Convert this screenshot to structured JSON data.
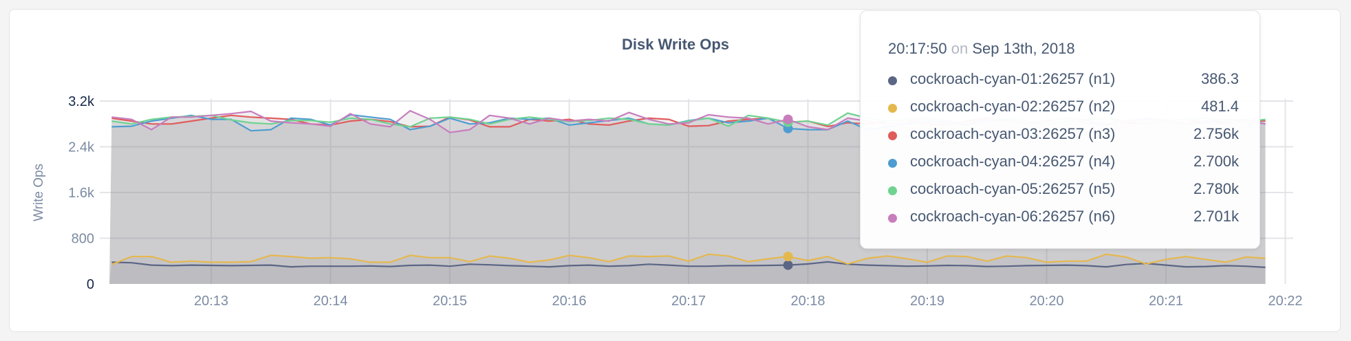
{
  "chart_data": {
    "type": "line",
    "title": "Disk Write Ops",
    "ylabel": "Write Ops",
    "xlabel": "",
    "ylim": [
      0,
      3200
    ],
    "yticks": [
      "0",
      "800",
      "1.6k",
      "2.4k",
      "3.2k"
    ],
    "ytick_values": [
      0,
      800,
      1600,
      2400,
      3200
    ],
    "xticks": [
      "20:13",
      "20:14",
      "20:15",
      "20:16",
      "20:17",
      "20:18",
      "20:19",
      "20:20",
      "20:21",
      "20:22"
    ],
    "x_start": "20:12:10",
    "x_interval_seconds": 10,
    "grid": true,
    "series": [
      {
        "name": "cockroach-cyan-01:26257 (n1)",
        "color": "#5b6584",
        "values": [
          380,
          370,
          330,
          320,
          330,
          325,
          320,
          325,
          330,
          300,
          310,
          310,
          310,
          315,
          305,
          325,
          330,
          310,
          345,
          335,
          320,
          310,
          300,
          320,
          330,
          310,
          320,
          345,
          330,
          310,
          310,
          320,
          320,
          325,
          330,
          350,
          386,
          345,
          330,
          320,
          310,
          315,
          325,
          320,
          305,
          310,
          320,
          325,
          330,
          320,
          300,
          340,
          360,
          330,
          300,
          305,
          320,
          310,
          290
        ]
      },
      {
        "name": "cockroach-cyan-02:26257 (n2)",
        "color": "#e5b84e",
        "values": [
          340,
          480,
          480,
          380,
          400,
          380,
          380,
          390,
          500,
          480,
          450,
          460,
          440,
          380,
          380,
          500,
          460,
          460,
          390,
          490,
          450,
          380,
          420,
          500,
          460,
          390,
          490,
          480,
          490,
          400,
          520,
          490,
          390,
          440,
          480,
          410,
          481,
          350,
          450,
          490,
          440,
          380,
          490,
          480,
          400,
          490,
          460,
          380,
          400,
          400,
          520,
          470,
          350,
          430,
          480,
          430,
          380,
          470,
          450
        ]
      },
      {
        "name": "cockroach-cyan-03:26257 (n3)",
        "color": "#e05c5c",
        "values": [
          2900,
          2850,
          2800,
          2800,
          2850,
          2900,
          2950,
          2920,
          2900,
          2880,
          2800,
          2780,
          2850,
          2880,
          2840,
          2750,
          2760,
          2920,
          2870,
          2750,
          2750,
          2880,
          2850,
          2880,
          2800,
          2780,
          2850,
          2900,
          2880,
          2760,
          2770,
          2850,
          2880,
          2900,
          2830,
          2850,
          2756,
          2820,
          2800,
          2850,
          2880,
          2800,
          2780,
          2850,
          2900,
          2860,
          2820,
          2800,
          2850,
          2880,
          2900,
          2820,
          2800,
          2850,
          2880,
          2830,
          2820,
          2860,
          2850
        ]
      },
      {
        "name": "cockroach-cyan-04:26257 (n4)",
        "color": "#4e9dd1",
        "values": [
          2750,
          2760,
          2850,
          2900,
          2950,
          2880,
          2880,
          2680,
          2700,
          2900,
          2880,
          2780,
          2960,
          2920,
          2880,
          2700,
          2760,
          2900,
          2800,
          2820,
          2900,
          2880,
          2900,
          2780,
          2820,
          2860,
          2900,
          2800,
          2780,
          2860,
          2900,
          2820,
          2850,
          2900,
          2720,
          2700,
          2700,
          2850,
          2700,
          2750,
          2800,
          2850,
          2820,
          2780,
          2850,
          2880,
          2800,
          2850,
          2900,
          2820,
          2780,
          2850,
          2900,
          2860,
          2800,
          2820,
          2860,
          2880,
          2800
        ]
      },
      {
        "name": "cockroach-cyan-05:26257 (n5)",
        "color": "#6fd391",
        "values": [
          2850,
          2800,
          2880,
          2920,
          2930,
          2950,
          2870,
          2820,
          2800,
          2860,
          2860,
          2830,
          2900,
          2880,
          2800,
          2750,
          2900,
          2920,
          2880,
          2800,
          2880,
          2920,
          2880,
          2840,
          2860,
          2900,
          2880,
          2800,
          2780,
          2850,
          2900,
          2760,
          2950,
          2900,
          2830,
          2850,
          2780,
          2990,
          2900,
          2850,
          2880,
          2900,
          2850,
          2820,
          2880,
          2900,
          2850,
          2800,
          2850,
          2880,
          2900,
          2850,
          2820,
          2860,
          2880,
          2900,
          2850,
          2830,
          2880
        ]
      },
      {
        "name": "cockroach-cyan-06:26257 (n6)",
        "color": "#c87dbd",
        "values": [
          2920,
          2880,
          2700,
          2920,
          2920,
          2950,
          2980,
          3020,
          2850,
          2820,
          2800,
          2760,
          2980,
          2800,
          2750,
          3030,
          2880,
          2650,
          2700,
          2950,
          2900,
          2800,
          2900,
          2850,
          2880,
          2850,
          3000,
          2880,
          2800,
          2820,
          2960,
          2920,
          2900,
          2800,
          2880,
          2750,
          2701,
          2900,
          2850,
          2800,
          2820,
          2900,
          2850,
          2800,
          2880,
          2850,
          2820,
          2850,
          2900,
          2860,
          2800,
          2850,
          2880,
          2840,
          2800,
          2850,
          2880,
          2860,
          2800
        ]
      }
    ],
    "tooltip": {
      "time": "20:17:50",
      "on": "on",
      "date": "Sep 13th, 2018",
      "rows": [
        {
          "name": "cockroach-cyan-01:26257 (n1)",
          "value": "386.3"
        },
        {
          "name": "cockroach-cyan-02:26257 (n2)",
          "value": "481.4"
        },
        {
          "name": "cockroach-cyan-03:26257 (n3)",
          "value": "2.756k"
        },
        {
          "name": "cockroach-cyan-04:26257 (n4)",
          "value": "2.700k"
        },
        {
          "name": "cockroach-cyan-05:26257 (n5)",
          "value": "2.780k"
        },
        {
          "name": "cockroach-cyan-06:26257 (n6)",
          "value": "2.701k"
        }
      ]
    }
  }
}
